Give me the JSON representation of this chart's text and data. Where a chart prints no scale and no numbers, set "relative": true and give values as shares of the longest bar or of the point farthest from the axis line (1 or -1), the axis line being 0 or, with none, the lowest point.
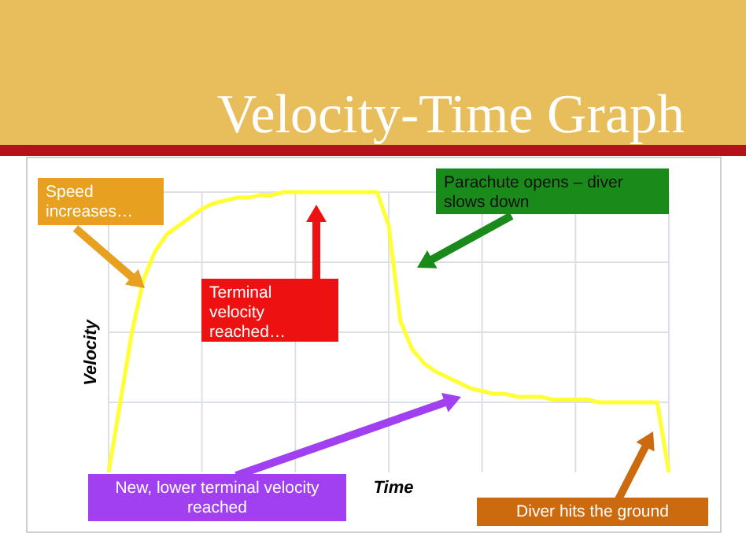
{
  "chart_data": {
    "type": "line",
    "title": "Velocity-Time Graph",
    "xlabel": "Time",
    "ylabel": "Velocity",
    "relative": true,
    "categories": [
      null,
      null,
      null,
      null,
      null,
      null,
      null,
      null,
      null,
      null,
      null,
      null,
      null,
      null,
      null,
      null,
      null,
      null,
      null,
      null,
      null,
      null,
      null,
      null,
      null,
      null,
      null,
      null,
      null,
      null,
      null,
      null,
      null,
      null,
      null,
      null,
      null,
      null,
      null,
      null,
      null,
      null,
      null,
      null,
      null,
      null,
      null,
      null,
      null
    ],
    "series": [
      {
        "color": "#ffff33",
        "values": [
          0,
          0.25,
          0.5,
          0.69,
          0.79,
          0.85,
          0.88,
          0.91,
          0.94,
          0.96,
          0.97,
          0.98,
          0.98,
          0.99,
          0.99,
          1,
          1,
          1,
          1,
          1,
          1,
          1,
          1,
          1,
          0.88,
          0.54,
          0.44,
          0.39,
          0.36,
          0.34,
          0.32,
          0.3,
          0.29,
          0.28,
          0.28,
          0.27,
          0.27,
          0.27,
          0.26,
          0.26,
          0.26,
          0.26,
          0.25,
          0.25,
          0.25,
          0.25,
          0.25,
          0.25,
          0
        ]
      }
    ],
    "grid": true,
    "annotations": [
      "Speed increases…",
      "Terminal velocity reached…",
      "Parachute opens – diver slows down",
      "New, lower terminal velocity reached",
      "Diver hits the ground"
    ]
  }
}
